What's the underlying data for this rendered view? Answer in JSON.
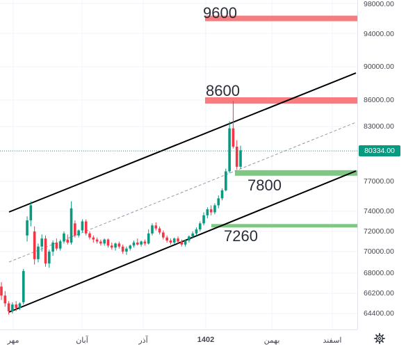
{
  "price_axis": {
    "ticks": [
      "98000.00",
      "94000.00",
      "90000.00",
      "86000.00",
      "83000.00",
      "77000.00",
      "74000.00",
      "72000.00",
      "70000.00",
      "68000.00",
      "66200.00",
      "64400.00"
    ],
    "current_price": "80334.00",
    "current_price_color": "#089981"
  },
  "time_axis": {
    "labels": [
      "مهر",
      "آبان",
      "آذر",
      "1402",
      "بهمن",
      "اسفند"
    ]
  },
  "levels": {
    "resistance_high": "9600",
    "resistance_mid": "8600",
    "support_high": "7800",
    "support_low": "7260"
  },
  "colors": {
    "resistance": "#f77c80",
    "support": "#81c784",
    "bull": "#089981",
    "bear": "#f23645",
    "channel": "#000000"
  },
  "icons": {
    "settings": "gear-icon"
  },
  "chart_data": {
    "type": "candlestick",
    "price_levels": {
      "resistance": [
        96000,
        86000
      ],
      "support": [
        78000,
        72600
      ]
    },
    "current_price": 80334,
    "ylim": [
      63000,
      99000
    ],
    "ohlc": [
      [
        66800,
        67200,
        65600,
        66000
      ],
      [
        66000,
        66400,
        65000,
        65300
      ],
      [
        65300,
        65500,
        64300,
        64600
      ],
      [
        64600,
        65400,
        64400,
        65200
      ],
      [
        65200,
        65500,
        64600,
        64900
      ],
      [
        64900,
        65400,
        64700,
        65300
      ],
      [
        65400,
        68400,
        65200,
        68200
      ],
      [
        71600,
        73500,
        71000,
        73100
      ],
      [
        73100,
        75000,
        72500,
        74600
      ],
      [
        72000,
        72500,
        68800,
        69300
      ],
      [
        69300,
        70800,
        69000,
        70500
      ],
      [
        70500,
        71700,
        70000,
        71300
      ],
      [
        71300,
        71600,
        68600,
        68900
      ],
      [
        68900,
        70200,
        68500,
        70000
      ],
      [
        70000,
        71100,
        69600,
        70900
      ],
      [
        70900,
        71300,
        70100,
        70300
      ],
      [
        70300,
        71200,
        70100,
        71000
      ],
      [
        71000,
        72000,
        70800,
        71800
      ],
      [
        71200,
        71700,
        70700,
        70900
      ],
      [
        70900,
        75000,
        70700,
        74300
      ],
      [
        72800,
        73100,
        71400,
        71600
      ],
      [
        71600,
        72200,
        71400,
        72100
      ],
      [
        72100,
        73200,
        71900,
        73000
      ],
      [
        73000,
        73200,
        71600,
        71800
      ],
      [
        71800,
        72000,
        71200,
        71400
      ],
      [
        71400,
        71600,
        70900,
        71200
      ],
      [
        71200,
        71400,
        70800,
        71000
      ],
      [
        71000,
        71200,
        70600,
        70800
      ],
      [
        70800,
        71300,
        70600,
        71200
      ],
      [
        71200,
        71300,
        70400,
        70600
      ],
      [
        70600,
        70900,
        70200,
        70400
      ],
      [
        70400,
        70900,
        70100,
        70800
      ],
      [
        70800,
        71000,
        70300,
        70500
      ],
      [
        70500,
        70700,
        69800,
        70000
      ],
      [
        70000,
        70500,
        69700,
        70300
      ],
      [
        70300,
        70700,
        70100,
        70600
      ],
      [
        70600,
        71100,
        70400,
        70900
      ],
      [
        70900,
        71300,
        70600,
        70700
      ],
      [
        70700,
        71100,
        70500,
        71000
      ],
      [
        71000,
        71200,
        70600,
        70800
      ],
      [
        70800,
        72200,
        70700,
        71800
      ],
      [
        71800,
        72800,
        71600,
        72600
      ],
      [
        72600,
        72900,
        72100,
        72300
      ],
      [
        72300,
        72500,
        71700,
        71900
      ],
      [
        71900,
        72100,
        71200,
        71400
      ],
      [
        71400,
        71600,
        70900,
        71100
      ],
      [
        71100,
        71300,
        70700,
        70900
      ],
      [
        70900,
        71400,
        70700,
        71300
      ],
      [
        71300,
        71500,
        70800,
        71000
      ],
      [
        71000,
        71200,
        70500,
        70700
      ],
      [
        70700,
        71200,
        70500,
        71100
      ],
      [
        71100,
        71600,
        70900,
        71500
      ],
      [
        71500,
        72000,
        71300,
        71800
      ],
      [
        71800,
        72400,
        71600,
        72200
      ],
      [
        72200,
        73000,
        72000,
        72800
      ],
      [
        72800,
        73900,
        72600,
        73600
      ],
      [
        73600,
        74400,
        73300,
        74200
      ],
      [
        74200,
        74600,
        73600,
        73900
      ],
      [
        73900,
        74800,
        73700,
        74600
      ],
      [
        74600,
        75600,
        74300,
        75300
      ],
      [
        75300,
        76300,
        75100,
        76100
      ],
      [
        76100,
        78400,
        76000,
        78100
      ],
      [
        78100,
        83600,
        77900,
        82800
      ],
      [
        82800,
        85900,
        80600,
        80800
      ],
      [
        80800,
        81500,
        78300,
        78600
      ],
      [
        78600,
        80900,
        78400,
        80400
      ]
    ]
  }
}
